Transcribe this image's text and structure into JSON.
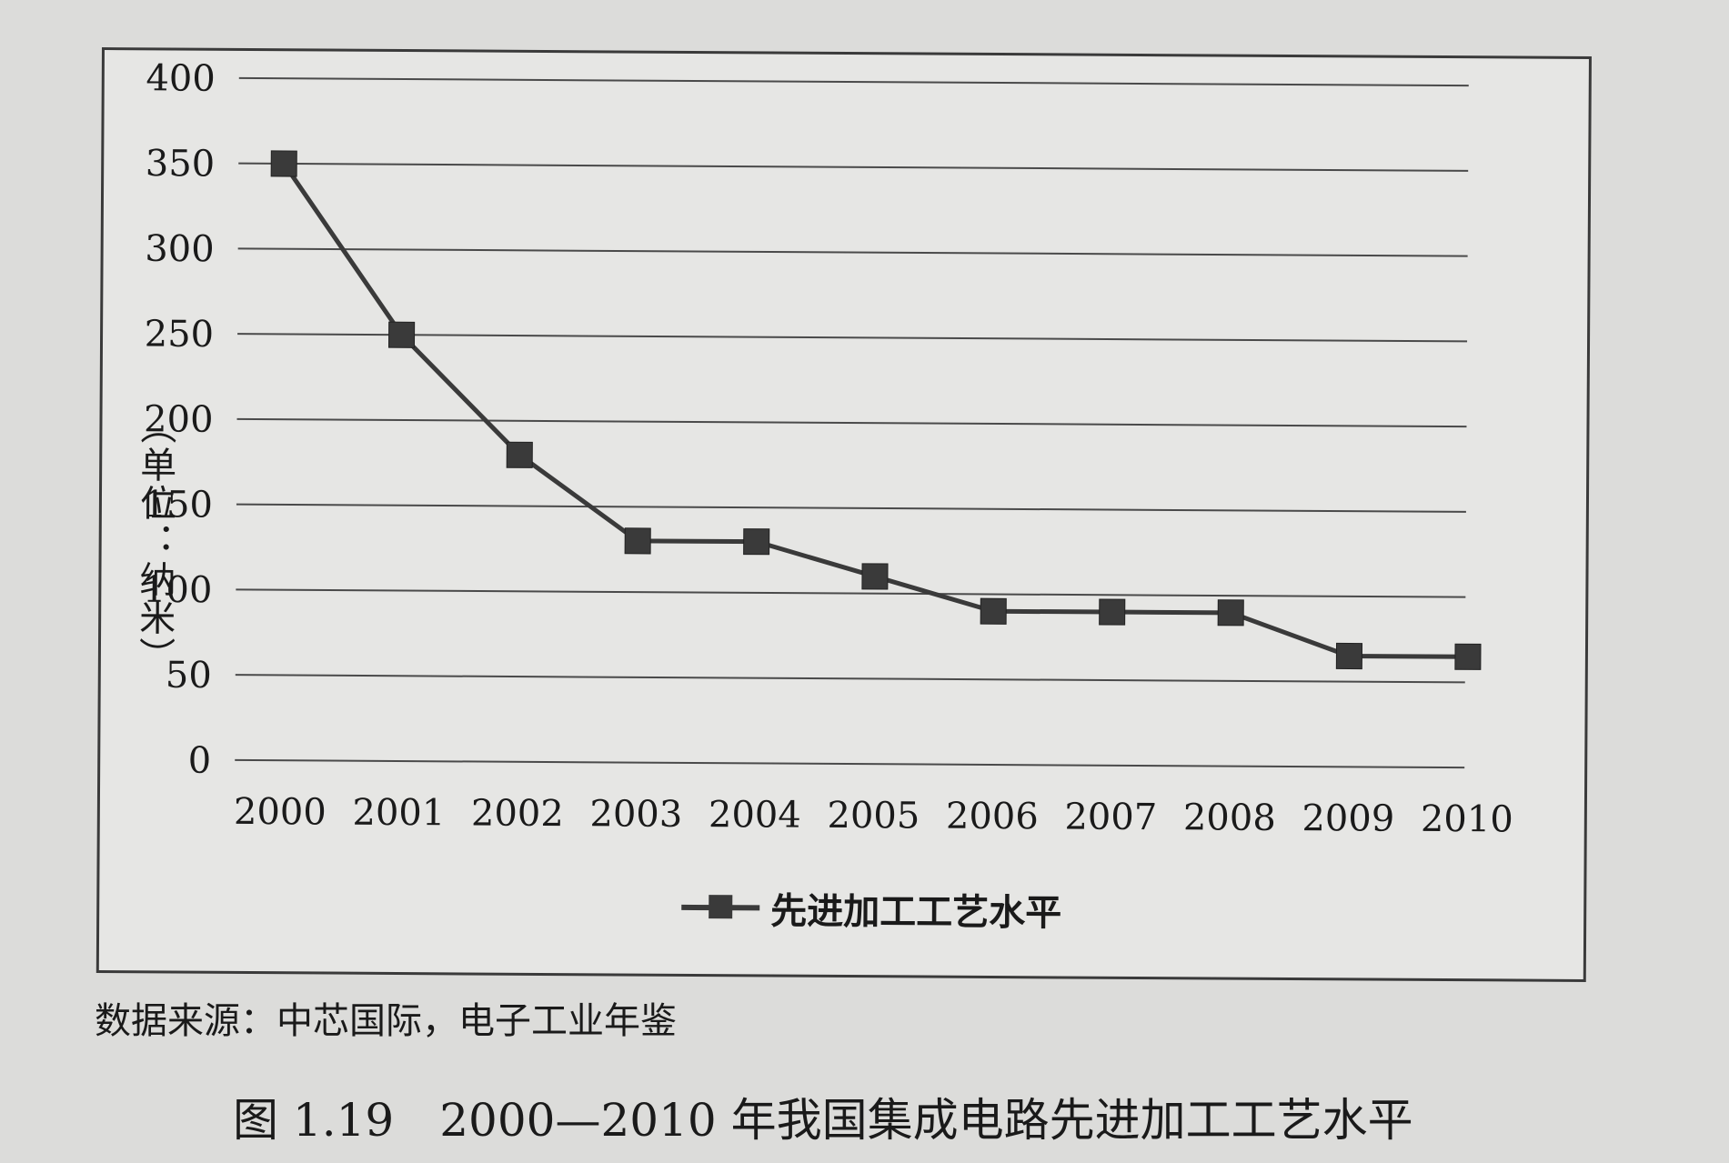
{
  "chart_data": {
    "type": "line",
    "categories": [
      "2000",
      "2001",
      "2002",
      "2003",
      "2004",
      "2005",
      "2006",
      "2007",
      "2008",
      "2009",
      "2010"
    ],
    "series": [
      {
        "name": "先进加工工艺水平",
        "values": [
          350,
          250,
          180,
          130,
          130,
          110,
          90,
          90,
          90,
          65,
          65
        ],
        "color": "#3a3a3a"
      }
    ],
    "ylim": [
      0,
      400
    ],
    "yticks": [
      0,
      50,
      100,
      150,
      200,
      250,
      300,
      350,
      400
    ],
    "ylabel": "（单位：纳米）",
    "xlabel": "",
    "grid": true,
    "legend_position": "bottom"
  },
  "source": "数据来源：中芯国际，电子工业年鉴",
  "caption": "图 1.19　2000—2010 年我国集成电路先进加工工艺水平"
}
